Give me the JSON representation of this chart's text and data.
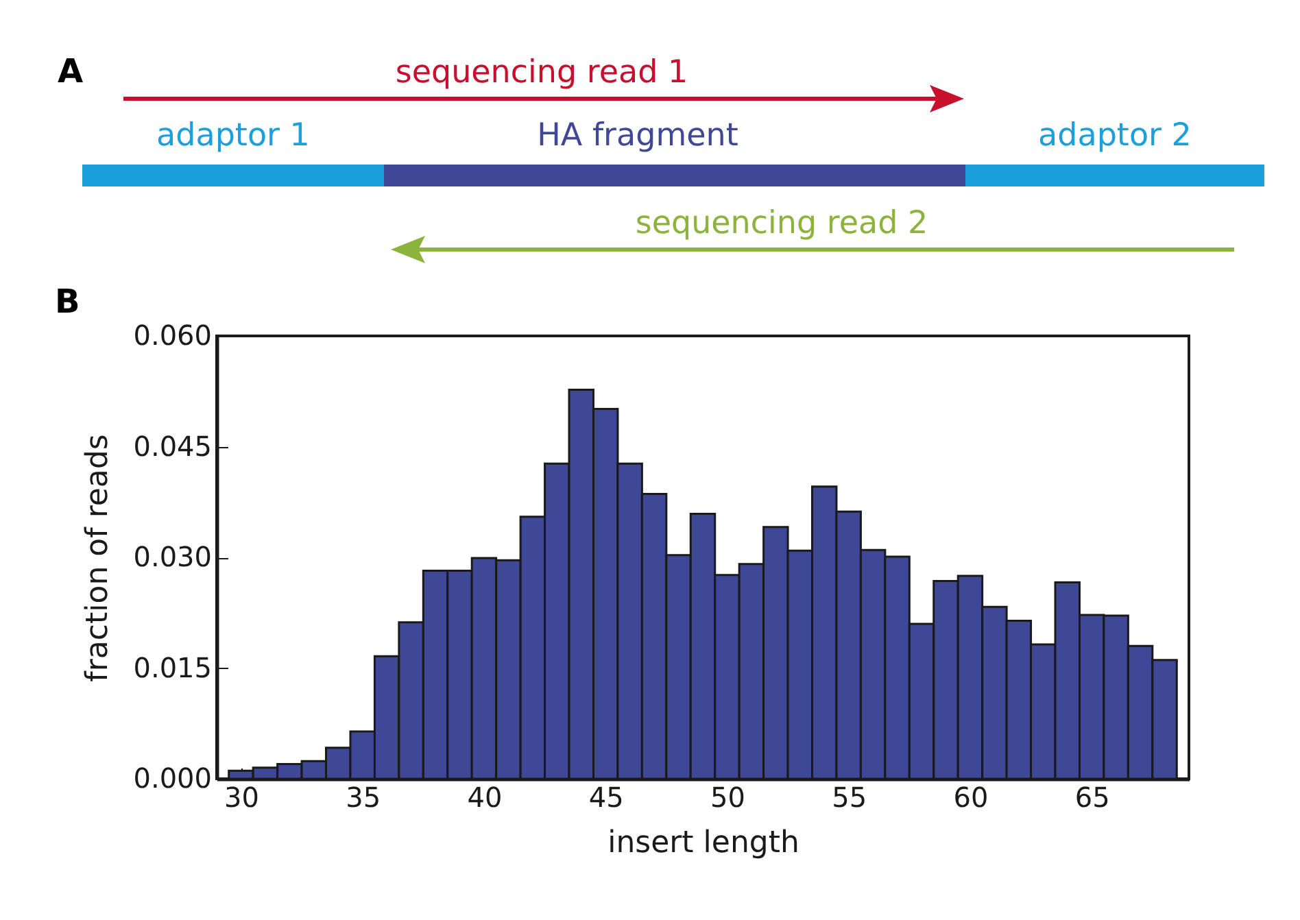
{
  "chart_data": [
    {
      "type": "other",
      "title": "A",
      "annotations": [
        "sequencing read 1",
        "adaptor 1",
        "HA fragment",
        "adaptor 2",
        "sequencing read 2"
      ]
    },
    {
      "type": "histogram",
      "title": "B",
      "xlabel": "insert length",
      "ylabel": "fraction of reads",
      "color": "#3f4896",
      "bins": [
        29.5,
        30.5,
        31.5,
        32.5,
        33.5,
        34.5,
        35.5,
        36.5,
        37.5,
        38.5,
        39.5,
        40.5,
        41.5,
        42.5,
        43.5,
        44.5,
        45.5,
        46.5,
        47.5,
        48.5,
        49.5,
        50.5,
        51.5,
        52.5,
        53.5,
        54.5,
        55.5,
        56.5,
        57.5,
        58.5,
        59.5,
        60.5,
        61.5,
        62.5,
        63.5,
        64.5,
        65.5,
        66.5,
        67.5,
        68.5
      ],
      "values": [
        0.0011,
        0.0015,
        0.002,
        0.0024,
        0.0042,
        0.0064,
        0.0166,
        0.0212,
        0.0282,
        0.0282,
        0.0299,
        0.0296,
        0.0355,
        0.0427,
        0.0527,
        0.0501,
        0.0427,
        0.0386,
        0.0303,
        0.0359,
        0.0276,
        0.0291,
        0.0341,
        0.0309,
        0.0396,
        0.0362,
        0.031,
        0.0301,
        0.021,
        0.0268,
        0.0275,
        0.0233,
        0.0214,
        0.0182,
        0.0266,
        0.0222,
        0.0221,
        0.018,
        0.0161
      ],
      "xlim": [
        29,
        69
      ],
      "ylim": [
        0,
        0.06
      ],
      "xticks": [
        30,
        35,
        40,
        45,
        50,
        55,
        60,
        65
      ],
      "yticks": [
        {
          "value": 0,
          "label": "0.000"
        },
        {
          "value": 0.015,
          "label": "0.015"
        },
        {
          "value": 0.03,
          "label": "0.030"
        },
        {
          "value": 0.045,
          "label": "0.045"
        },
        {
          "value": 0.06,
          "label": "0.060"
        }
      ],
      "grid": false
    }
  ]
}
